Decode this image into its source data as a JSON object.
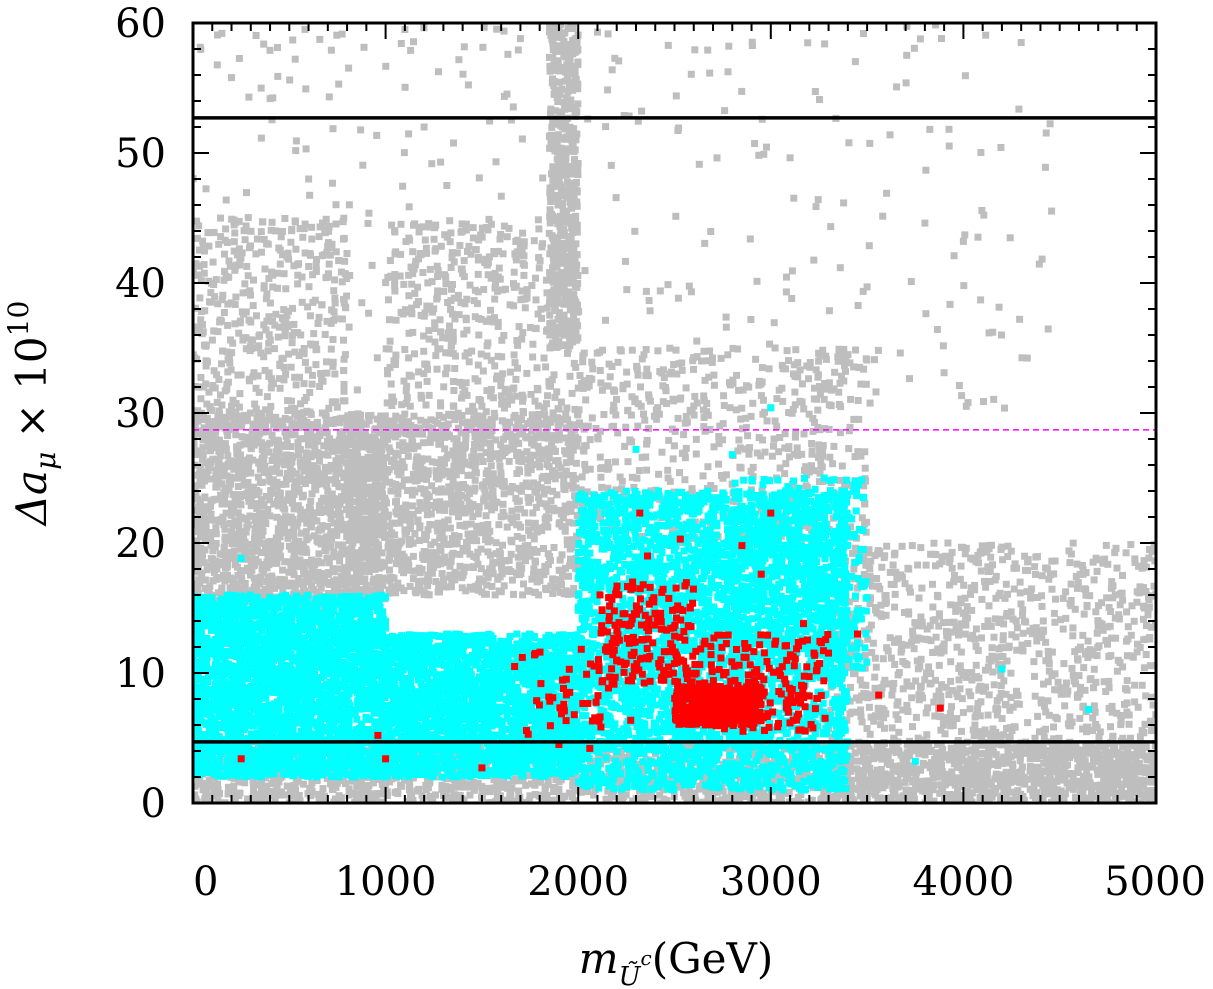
{
  "chart_data": {
    "type": "scatter",
    "xlabel": {
      "base": "m",
      "subscript": "Ũ",
      "superscript": "c",
      "unit": "(GeV)"
    },
    "ylabel": {
      "prefix": "Δa",
      "subscript": "μ",
      "times": " × 10",
      "superscript": "10"
    },
    "xlim": [
      0,
      5000
    ],
    "ylim": [
      0,
      60
    ],
    "x_ticks": [
      "0",
      "1000",
      "2000",
      "3000",
      "4000",
      "5000"
    ],
    "y_ticks": [
      "0",
      "10",
      "20",
      "30",
      "40",
      "50",
      "60"
    ],
    "grid": false,
    "legend": "none",
    "reference_lines": [
      {
        "style": "solid",
        "color": "#000000",
        "y": 52.7
      },
      {
        "style": "dashed",
        "color": "#ff00ff",
        "y": 28.7
      },
      {
        "style": "solid",
        "color": "#000000",
        "y": 4.7
      }
    ],
    "series": [
      {
        "color": "#bebebe",
        "regions": [
          {
            "x": [
              0,
              5000
            ],
            "y": [
              0,
              4.7
            ],
            "n": 2200
          },
          {
            "x": [
              0,
              1000
            ],
            "y": [
              15,
              30
            ],
            "n": 1600
          },
          {
            "x": [
              0,
              800
            ],
            "y": [
              30,
              45
            ],
            "n": 400
          },
          {
            "x": [
              800,
              2000
            ],
            "y": [
              16,
              30
            ],
            "n": 1200
          },
          {
            "x": [
              1000,
              2000
            ],
            "y": [
              28,
              45
            ],
            "n": 500
          },
          {
            "x": [
              1850,
              2000
            ],
            "y": [
              35,
              60
            ],
            "n": 500
          },
          {
            "x": [
              2000,
              3500
            ],
            "y": [
              20,
              35
            ],
            "n": 600
          },
          {
            "x": [
              3300,
              5000
            ],
            "y": [
              0,
              20
            ],
            "n": 1200
          },
          {
            "x": [
              0,
              4500
            ],
            "y": [
              30,
              60
            ],
            "n": 320
          }
        ],
        "points": [
          [
            150,
            59.2
          ],
          [
            200,
            55.8
          ],
          [
            290,
            54.3
          ],
          [
            400,
            57.9
          ],
          [
            1100,
            59.5
          ],
          [
            1200,
            52.0
          ],
          [
            1700,
            58.8
          ],
          [
            2100,
            59.3
          ],
          [
            4300,
            58.5
          ],
          [
            4000,
            43.2
          ],
          [
            3900,
            33.1
          ],
          [
            3000,
            30.4
          ],
          [
            4700,
            13.6
          ],
          [
            4950,
            12.6
          ],
          [
            4850,
            7.7
          ],
          [
            4600,
            9.8
          ],
          [
            3500,
            39.7
          ],
          [
            600,
            48.0
          ]
        ]
      },
      {
        "color": "#00ffff",
        "regions": [
          {
            "x": [
              0,
              1000
            ],
            "y": [
              2,
              16
            ],
            "n": 2800
          },
          {
            "x": [
              1000,
              2000
            ],
            "y": [
              2,
              13
            ],
            "n": 2200
          },
          {
            "x": [
              2000,
              3400
            ],
            "y": [
              1,
              24
            ],
            "n": 3400
          },
          {
            "x": [
              2800,
              3500
            ],
            "y": [
              10,
              25
            ],
            "n": 400
          }
        ],
        "points": [
          [
            3000,
            30.4
          ],
          [
            2300,
            27.2
          ],
          [
            2800,
            26.8
          ],
          [
            4650,
            7.2
          ],
          [
            4200,
            10.3
          ],
          [
            3750,
            3.2
          ],
          [
            3500,
            15.8
          ],
          [
            3300,
            13.6
          ],
          [
            250,
            18.8
          ],
          [
            1500,
            2.6
          ],
          [
            1000,
            2.0
          ]
        ]
      },
      {
        "color": "#ff0000",
        "regions": [
          {
            "x": [
              2500,
              2950
            ],
            "y": [
              6,
              9
            ],
            "n": 420
          },
          {
            "x": [
              2100,
              2600
            ],
            "y": [
              9,
              17
            ],
            "n": 180
          },
          {
            "x": [
              2600,
              3300
            ],
            "y": [
              5.5,
              13
            ],
            "n": 180
          },
          {
            "x": [
              1700,
              2300
            ],
            "y": [
              5,
              12
            ],
            "n": 45
          }
        ],
        "points": [
          [
            3000,
            22.3
          ],
          [
            2320,
            22.3
          ],
          [
            2530,
            20.3
          ],
          [
            2850,
            19.8
          ],
          [
            250,
            3.4
          ],
          [
            960,
            5.2
          ],
          [
            1000,
            3.4
          ],
          [
            1500,
            2.7
          ],
          [
            3560,
            8.3
          ],
          [
            3880,
            7.3
          ],
          [
            3450,
            13.0
          ],
          [
            1900,
            4.5
          ],
          [
            2060,
            4.2
          ],
          [
            1670,
            10.5
          ],
          [
            1710,
            11.2
          ],
          [
            2360,
            19.0
          ],
          [
            2950,
            17.6
          ],
          [
            3170,
            13.8
          ]
        ]
      }
    ]
  }
}
